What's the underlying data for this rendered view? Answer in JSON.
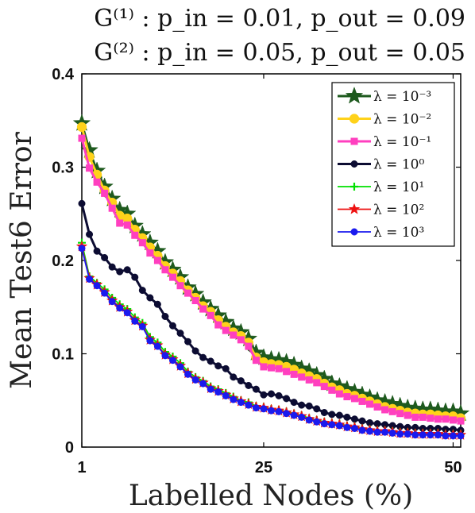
{
  "chart_data": {
    "type": "line",
    "title_lines": [
      "G⁽¹⁾ : p_in = 0.01,  p_out = 0.09",
      "G⁽²⁾ : p_in = 0.05,  p_out = 0.05"
    ],
    "xlabel": "Labelled Nodes (%)",
    "ylabel": "Mean Test6 Error",
    "xlim": [
      1,
      51
    ],
    "ylim": [
      0,
      0.4
    ],
    "xticks": [
      1,
      25,
      50
    ],
    "yticks": [
      0,
      0.1,
      0.2,
      0.3,
      0.4
    ],
    "ytick_labels": [
      "0",
      "0.1",
      "0.2",
      "0.3",
      "0.4"
    ],
    "grid": false,
    "legend_position": "top-right",
    "x": [
      1,
      2,
      3,
      4,
      5,
      6,
      7,
      8,
      9,
      10,
      11,
      12,
      13,
      14,
      15,
      16,
      17,
      18,
      19,
      20,
      21,
      22,
      23,
      24,
      25,
      26,
      27,
      28,
      29,
      30,
      31,
      32,
      33,
      34,
      35,
      36,
      37,
      38,
      39,
      40,
      41,
      42,
      43,
      44,
      45,
      46,
      47,
      48,
      49,
      50,
      51
    ],
    "series": [
      {
        "name": "λ = 10⁻³",
        "color": "#1e5a1e",
        "marker": "star",
        "values": [
          0.347,
          0.318,
          0.296,
          0.279,
          0.266,
          0.254,
          0.25,
          0.237,
          0.228,
          0.219,
          0.21,
          0.198,
          0.19,
          0.182,
          0.171,
          0.164,
          0.155,
          0.148,
          0.141,
          0.134,
          0.127,
          0.123,
          0.116,
          0.101,
          0.096,
          0.094,
          0.093,
          0.091,
          0.088,
          0.084,
          0.081,
          0.077,
          0.073,
          0.068,
          0.065,
          0.062,
          0.059,
          0.056,
          0.053,
          0.05,
          0.048,
          0.046,
          0.044,
          0.042,
          0.041,
          0.04,
          0.04,
          0.039,
          0.038,
          0.038,
          0.036
        ]
      },
      {
        "name": "λ = 10⁻²",
        "color": "#ffd21a",
        "marker": "circle",
        "values": [
          0.343,
          0.311,
          0.292,
          0.275,
          0.262,
          0.248,
          0.245,
          0.233,
          0.224,
          0.214,
          0.205,
          0.194,
          0.186,
          0.178,
          0.168,
          0.16,
          0.151,
          0.145,
          0.136,
          0.129,
          0.123,
          0.119,
          0.112,
          0.096,
          0.091,
          0.089,
          0.088,
          0.086,
          0.083,
          0.079,
          0.076,
          0.073,
          0.068,
          0.064,
          0.061,
          0.057,
          0.055,
          0.052,
          0.049,
          0.046,
          0.043,
          0.041,
          0.039,
          0.037,
          0.036,
          0.035,
          0.035,
          0.034,
          0.033,
          0.033,
          0.031
        ]
      },
      {
        "name": "λ = 10⁻¹",
        "color": "#ff3fbf",
        "marker": "square",
        "values": [
          0.331,
          0.299,
          0.284,
          0.272,
          0.256,
          0.24,
          0.238,
          0.227,
          0.219,
          0.208,
          0.2,
          0.19,
          0.182,
          0.173,
          0.165,
          0.157,
          0.148,
          0.141,
          0.131,
          0.125,
          0.12,
          0.115,
          0.108,
          0.093,
          0.086,
          0.085,
          0.084,
          0.081,
          0.078,
          0.075,
          0.072,
          0.069,
          0.065,
          0.061,
          0.057,
          0.054,
          0.052,
          0.049,
          0.046,
          0.043,
          0.04,
          0.038,
          0.036,
          0.034,
          0.032,
          0.032,
          0.031,
          0.03,
          0.03,
          0.029,
          0.028
        ]
      },
      {
        "name": "λ = 10⁰",
        "color": "#0c0c32",
        "marker": "circle",
        "values": [
          0.261,
          0.228,
          0.21,
          0.203,
          0.193,
          0.188,
          0.19,
          0.182,
          0.168,
          0.16,
          0.153,
          0.14,
          0.13,
          0.122,
          0.113,
          0.103,
          0.096,
          0.092,
          0.087,
          0.084,
          0.075,
          0.071,
          0.066,
          0.062,
          0.056,
          0.057,
          0.055,
          0.052,
          0.048,
          0.045,
          0.044,
          0.041,
          0.037,
          0.035,
          0.034,
          0.032,
          0.03,
          0.028,
          0.026,
          0.025,
          0.024,
          0.023,
          0.022,
          0.021,
          0.021,
          0.02,
          0.02,
          0.02,
          0.019,
          0.019,
          0.018
        ]
      },
      {
        "name": "λ = 10¹",
        "color": "#00e000",
        "marker": "plus",
        "values": [
          0.219,
          0.183,
          0.176,
          0.169,
          0.16,
          0.153,
          0.148,
          0.139,
          0.133,
          0.118,
          0.112,
          0.102,
          0.097,
          0.09,
          0.081,
          0.075,
          0.071,
          0.065,
          0.062,
          0.058,
          0.054,
          0.05,
          0.048,
          0.044,
          0.043,
          0.041,
          0.04,
          0.038,
          0.036,
          0.034,
          0.031,
          0.029,
          0.027,
          0.026,
          0.025,
          0.023,
          0.022,
          0.02,
          0.019,
          0.018,
          0.018,
          0.017,
          0.016,
          0.016,
          0.015,
          0.015,
          0.015,
          0.015,
          0.014,
          0.014,
          0.014
        ]
      },
      {
        "name": "λ = 10²",
        "color": "#ee1111",
        "marker": "star",
        "values": [
          0.215,
          0.181,
          0.174,
          0.166,
          0.157,
          0.15,
          0.145,
          0.136,
          0.13,
          0.115,
          0.109,
          0.099,
          0.094,
          0.087,
          0.079,
          0.073,
          0.069,
          0.063,
          0.06,
          0.056,
          0.052,
          0.049,
          0.046,
          0.043,
          0.042,
          0.04,
          0.039,
          0.037,
          0.035,
          0.033,
          0.03,
          0.028,
          0.026,
          0.025,
          0.024,
          0.022,
          0.021,
          0.019,
          0.018,
          0.017,
          0.017,
          0.016,
          0.015,
          0.015,
          0.014,
          0.014,
          0.014,
          0.014,
          0.013,
          0.013,
          0.013
        ]
      },
      {
        "name": "λ = 10³",
        "color": "#1a1aee",
        "marker": "circle",
        "values": [
          0.213,
          0.18,
          0.173,
          0.165,
          0.156,
          0.149,
          0.144,
          0.135,
          0.129,
          0.114,
          0.108,
          0.098,
          0.093,
          0.086,
          0.078,
          0.072,
          0.068,
          0.062,
          0.059,
          0.055,
          0.051,
          0.048,
          0.045,
          0.042,
          0.041,
          0.039,
          0.038,
          0.036,
          0.034,
          0.032,
          0.029,
          0.027,
          0.025,
          0.024,
          0.023,
          0.021,
          0.02,
          0.018,
          0.017,
          0.016,
          0.016,
          0.015,
          0.014,
          0.014,
          0.013,
          0.013,
          0.013,
          0.013,
          0.012,
          0.012,
          0.012
        ]
      }
    ]
  }
}
